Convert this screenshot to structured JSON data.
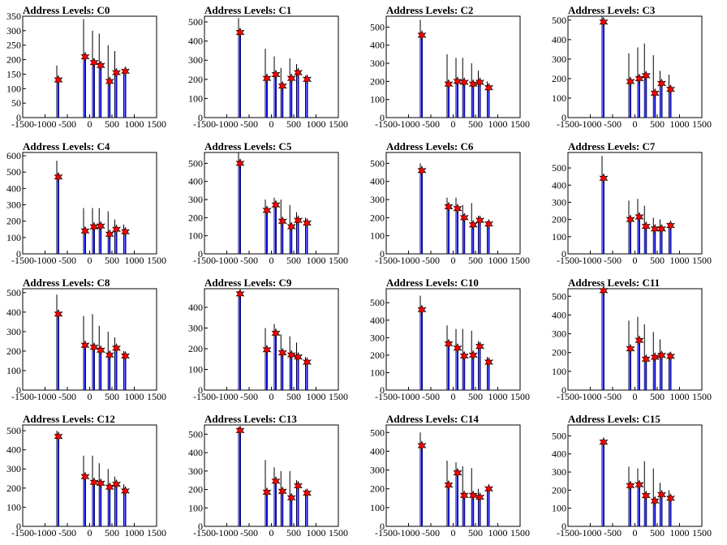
{
  "figure": {
    "x_ticks": [
      -1500,
      -1000,
      -500,
      0,
      500,
      1000,
      1500
    ],
    "xlim": [
      -1500,
      1500
    ],
    "colors": {
      "primary": "#0000ff",
      "overlay": "#000000",
      "marker": "#ff0000",
      "marker_edge": "#000000"
    },
    "marker_x": [
      -700,
      -100,
      100,
      250,
      450,
      600,
      800
    ]
  },
  "chart_data": [
    {
      "type": "bar",
      "title": "Address Levels: C0",
      "ylim": [
        0,
        350
      ],
      "yticks": [
        0,
        50,
        100,
        150,
        200,
        250,
        300,
        350
      ],
      "markers": [
        130,
        210,
        190,
        180,
        125,
        155,
        160
      ],
      "primary": [
        130,
        210,
        190,
        180,
        125,
        155,
        160
      ],
      "overlay": [
        180,
        340,
        300,
        290,
        250,
        230,
        160
      ]
    },
    {
      "type": "bar",
      "title": "Address Levels: C1",
      "ylim": [
        0,
        530
      ],
      "yticks": [
        0,
        100,
        200,
        300,
        400,
        500
      ],
      "markers": [
        445,
        205,
        225,
        165,
        205,
        235,
        200
      ],
      "primary": [
        445,
        205,
        225,
        165,
        205,
        235,
        200
      ],
      "overlay": [
        520,
        360,
        320,
        260,
        310,
        280,
        220
      ]
    },
    {
      "type": "bar",
      "title": "Address Levels: C2",
      "ylim": [
        0,
        560
      ],
      "yticks": [
        0,
        100,
        200,
        300,
        400,
        500
      ],
      "markers": [
        455,
        185,
        200,
        195,
        185,
        195,
        165
      ],
      "primary": [
        455,
        185,
        200,
        195,
        185,
        195,
        165
      ],
      "overlay": [
        540,
        350,
        330,
        330,
        300,
        260,
        200
      ]
    },
    {
      "type": "bar",
      "title": "Address Levels: C3",
      "ylim": [
        0,
        520
      ],
      "yticks": [
        0,
        100,
        200,
        300,
        400,
        500
      ],
      "markers": [
        490,
        185,
        200,
        215,
        125,
        175,
        145
      ],
      "primary": [
        490,
        185,
        200,
        215,
        125,
        175,
        145
      ],
      "overlay": [
        520,
        330,
        360,
        380,
        320,
        240,
        220
      ]
    },
    {
      "type": "bar",
      "title": "Address Levels: C4",
      "ylim": [
        0,
        620
      ],
      "yticks": [
        0,
        100,
        200,
        300,
        400,
        500,
        600
      ],
      "markers": [
        470,
        140,
        165,
        170,
        120,
        150,
        135
      ],
      "primary": [
        470,
        140,
        165,
        170,
        120,
        150,
        135
      ],
      "overlay": [
        570,
        280,
        280,
        280,
        260,
        210,
        180
      ]
    },
    {
      "type": "bar",
      "title": "Address Levels: C5",
      "ylim": [
        0,
        560
      ],
      "yticks": [
        0,
        100,
        200,
        300,
        400,
        500
      ],
      "markers": [
        500,
        240,
        270,
        180,
        150,
        185,
        170
      ],
      "primary": [
        500,
        240,
        270,
        180,
        150,
        185,
        170
      ],
      "overlay": [
        560,
        300,
        310,
        300,
        270,
        230,
        200
      ]
    },
    {
      "type": "bar",
      "title": "Address Levels: C6",
      "ylim": [
        0,
        560
      ],
      "yticks": [
        0,
        100,
        200,
        300,
        400,
        500
      ],
      "markers": [
        460,
        260,
        250,
        200,
        160,
        185,
        165
      ],
      "primary": [
        460,
        260,
        250,
        200,
        160,
        185,
        165
      ],
      "overlay": [
        500,
        310,
        310,
        270,
        280,
        210,
        180
      ]
    },
    {
      "type": "bar",
      "title": "Address Levels: C7",
      "ylim": [
        0,
        590
      ],
      "yticks": [
        0,
        100,
        200,
        300,
        400,
        500
      ],
      "markers": [
        440,
        200,
        215,
        160,
        145,
        145,
        165
      ],
      "primary": [
        440,
        200,
        215,
        160,
        145,
        145,
        165
      ],
      "overlay": [
        570,
        310,
        320,
        280,
        210,
        200,
        180
      ]
    },
    {
      "type": "bar",
      "title": "Address Levels: C8",
      "ylim": [
        0,
        520
      ],
      "yticks": [
        0,
        100,
        200,
        300,
        400,
        500
      ],
      "markers": [
        390,
        230,
        220,
        205,
        180,
        215,
        175
      ],
      "primary": [
        390,
        230,
        220,
        205,
        180,
        215,
        175
      ],
      "overlay": [
        490,
        380,
        390,
        330,
        300,
        270,
        200
      ]
    },
    {
      "type": "bar",
      "title": "Address Levels: C9",
      "ylim": [
        0,
        490
      ],
      "yticks": [
        0,
        100,
        200,
        300,
        400
      ],
      "markers": [
        465,
        195,
        275,
        180,
        170,
        160,
        135
      ],
      "primary": [
        465,
        195,
        275,
        180,
        170,
        160,
        135
      ],
      "overlay": [
        480,
        300,
        320,
        270,
        260,
        230,
        160
      ]
    },
    {
      "type": "bar",
      "title": "Address Levels: C10",
      "ylim": [
        0,
        580
      ],
      "yticks": [
        0,
        100,
        200,
        300,
        400,
        500
      ],
      "markers": [
        460,
        265,
        240,
        195,
        200,
        250,
        160
      ],
      "primary": [
        460,
        265,
        240,
        195,
        200,
        250,
        160
      ],
      "overlay": [
        540,
        370,
        350,
        350,
        340,
        280,
        190
      ]
    },
    {
      "type": "bar",
      "title": "Address Levels: C11",
      "ylim": [
        0,
        540
      ],
      "yticks": [
        0,
        100,
        200,
        300,
        400,
        500
      ],
      "markers": [
        530,
        220,
        265,
        165,
        175,
        185,
        180
      ],
      "primary": [
        530,
        220,
        265,
        165,
        175,
        185,
        180
      ],
      "overlay": [
        540,
        370,
        390,
        350,
        310,
        270,
        200
      ]
    },
    {
      "type": "bar",
      "title": "Address Levels: C12",
      "ylim": [
        0,
        530
      ],
      "yticks": [
        0,
        100,
        200,
        300,
        400,
        500
      ],
      "markers": [
        470,
        260,
        230,
        225,
        205,
        220,
        185
      ],
      "primary": [
        470,
        260,
        230,
        225,
        205,
        220,
        185
      ],
      "overlay": [
        500,
        370,
        370,
        330,
        300,
        260,
        220
      ]
    },
    {
      "type": "bar",
      "title": "Address Levels: C13",
      "ylim": [
        0,
        550
      ],
      "yticks": [
        0,
        100,
        200,
        300,
        400,
        500
      ],
      "markers": [
        520,
        185,
        245,
        190,
        155,
        220,
        180
      ],
      "primary": [
        520,
        185,
        245,
        190,
        155,
        220,
        180
      ],
      "overlay": [
        540,
        360,
        320,
        300,
        300,
        250,
        200
      ]
    },
    {
      "type": "bar",
      "title": "Address Levels: C14",
      "ylim": [
        0,
        540
      ],
      "yticks": [
        0,
        100,
        200,
        300,
        400,
        500
      ],
      "markers": [
        430,
        220,
        285,
        165,
        165,
        155,
        200
      ],
      "primary": [
        430,
        220,
        285,
        165,
        165,
        155,
        200
      ],
      "overlay": [
        500,
        350,
        340,
        320,
        310,
        200,
        210
      ]
    },
    {
      "type": "bar",
      "title": "Address Levels: C15",
      "ylim": [
        0,
        560
      ],
      "yticks": [
        0,
        100,
        200,
        300,
        400,
        500
      ],
      "markers": [
        465,
        225,
        230,
        170,
        140,
        175,
        155
      ],
      "primary": [
        465,
        225,
        230,
        170,
        140,
        175,
        155
      ],
      "overlay": [
        480,
        330,
        320,
        360,
        320,
        240,
        200
      ]
    }
  ]
}
